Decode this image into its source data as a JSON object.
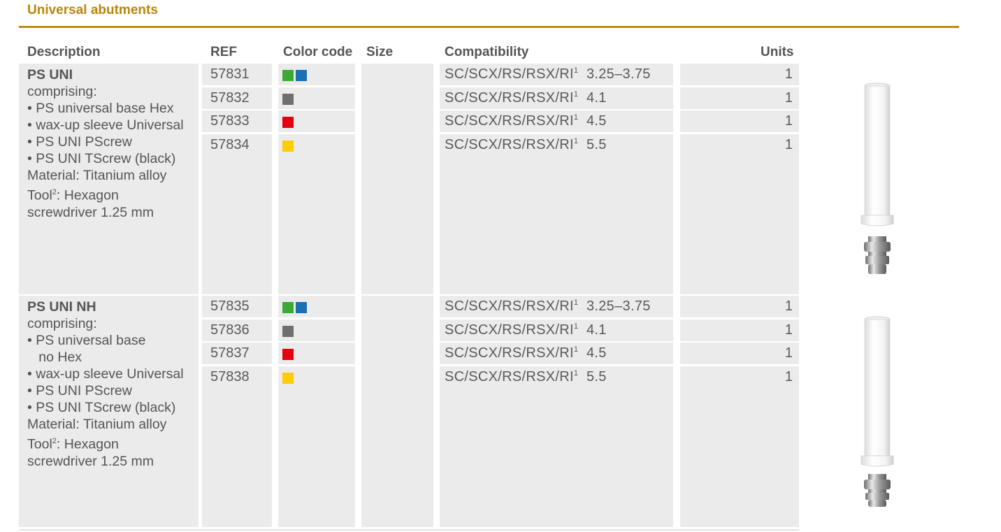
{
  "section_title": "Universal abutments",
  "headers": {
    "description": "Description",
    "ref": "REF",
    "color_code": "Color code",
    "size": "Size",
    "compatibility": "Compatibility",
    "units": "Units"
  },
  "products": [
    {
      "name": "PS UNI",
      "description_lines": [
        "comprising:",
        "• PS universal base Hex",
        "• wax-up sleeve Universal",
        "• PS UNI PScrew",
        "• PS UNI TScrew (black)",
        "Material: Titanium alloy"
      ],
      "tool_prefix": "Tool",
      "tool_sup": "2",
      "tool_suffix": ": Hexagon",
      "tool_line2": "screwdriver 1.25 mm",
      "rows": [
        {
          "ref": "57831",
          "colors": [
            "#3aaa35",
            "#1a6fb5"
          ],
          "compat": "SC/SCX/RS/RSX/RI",
          "compat_sup": "1",
          "diameter": "3.25–3.75",
          "size": "",
          "units": "1"
        },
        {
          "ref": "57832",
          "colors": [
            "#6f6f6f"
          ],
          "compat": "SC/SCX/RS/RSX/RI",
          "compat_sup": "1",
          "diameter": "4.1",
          "size": "",
          "units": "1"
        },
        {
          "ref": "57833",
          "colors": [
            "#e3000f"
          ],
          "compat": "SC/SCX/RS/RSX/RI",
          "compat_sup": "1",
          "diameter": "4.5",
          "size": "",
          "units": "1"
        },
        {
          "ref": "57834",
          "colors": [
            "#ffcc00"
          ],
          "compat": "SC/SCX/RS/RSX/RI",
          "compat_sup": "1",
          "diameter": "5.5",
          "size": "",
          "units": "1"
        }
      ]
    },
    {
      "name": "PS UNI NH",
      "description_lines": [
        "comprising:",
        "• PS universal base",
        "   no Hex",
        "• wax-up sleeve Universal",
        "• PS UNI PScrew",
        "• PS UNI TScrew (black)",
        "Material: Titanium alloy"
      ],
      "tool_prefix": "Tool",
      "tool_sup": "2",
      "tool_suffix": ": Hexagon",
      "tool_line2": "screwdriver 1.25 mm",
      "rows": [
        {
          "ref": "57835",
          "colors": [
            "#3aaa35",
            "#1a6fb5"
          ],
          "compat": "SC/SCX/RS/RSX/RI",
          "compat_sup": "1",
          "diameter": "3.25–3.75",
          "size": "",
          "units": "1"
        },
        {
          "ref": "57836",
          "colors": [
            "#6f6f6f"
          ],
          "compat": "SC/SCX/RS/RSX/RI",
          "compat_sup": "1",
          "diameter": "4.1",
          "size": "",
          "units": "1"
        },
        {
          "ref": "57837",
          "colors": [
            "#e3000f"
          ],
          "compat": "SC/SCX/RS/RSX/RI",
          "compat_sup": "1",
          "diameter": "4.5",
          "size": "",
          "units": "1"
        },
        {
          "ref": "57838",
          "colors": [
            "#ffcc00"
          ],
          "compat": "SC/SCX/RS/RSX/RI",
          "compat_sup": "1",
          "diameter": "5.5",
          "size": "",
          "units": "1"
        }
      ]
    }
  ],
  "colors": {
    "accent": "#c08a16",
    "cell_bg": "#ebebeb",
    "text": "#555555"
  }
}
